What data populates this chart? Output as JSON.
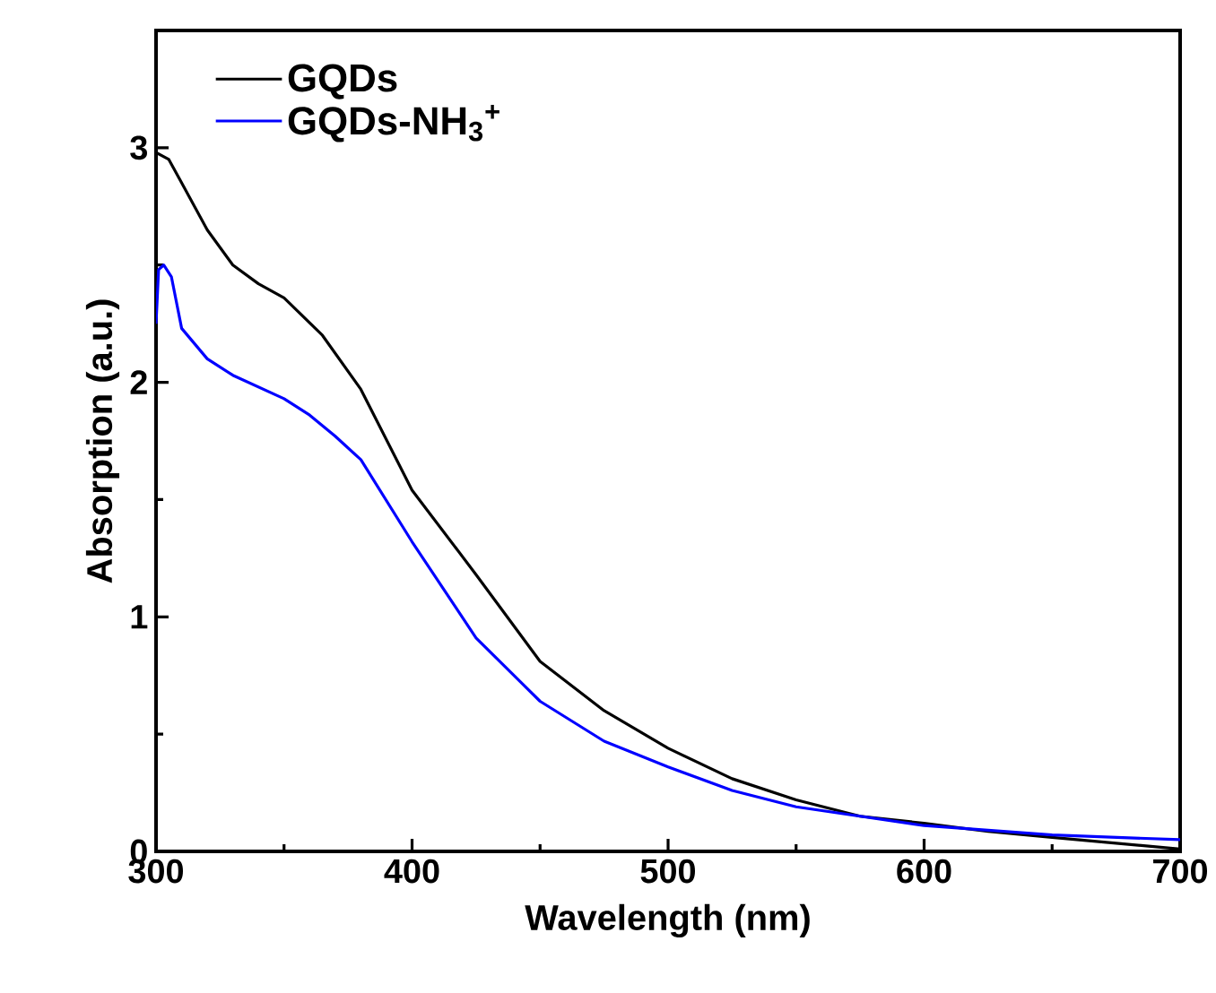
{
  "chart_data": {
    "type": "line",
    "xlabel": "Wavelength (nm)",
    "ylabel": "Absorption (a.u.)",
    "xlim": [
      300,
      700
    ],
    "ylim": [
      0,
      3.5
    ],
    "xticks": [
      300,
      400,
      500,
      600,
      700
    ],
    "yticks": [
      0,
      1,
      2,
      3
    ],
    "legend": "top left",
    "series": [
      {
        "name": "GQDs",
        "color": "#000000",
        "x": [
          300,
          305,
          310,
          320,
          330,
          340,
          350,
          365,
          380,
          400,
          425,
          450,
          475,
          500,
          525,
          550,
          575,
          600,
          625,
          650,
          675,
          700
        ],
        "values": [
          2.98,
          2.95,
          2.85,
          2.65,
          2.5,
          2.42,
          2.36,
          2.2,
          1.97,
          1.54,
          1.18,
          0.81,
          0.6,
          0.44,
          0.31,
          0.22,
          0.15,
          0.12,
          0.085,
          0.06,
          0.035,
          0.01
        ]
      },
      {
        "name": "GQDs-NH$_{3}$$^{+}$",
        "color": "#0000ff",
        "x": [
          300,
          301,
          303,
          306,
          310,
          320,
          330,
          340,
          350,
          360,
          370,
          380,
          400,
          425,
          450,
          475,
          500,
          525,
          550,
          575,
          600,
          625,
          650,
          675,
          700
        ],
        "values": [
          2.25,
          2.48,
          2.5,
          2.45,
          2.23,
          2.1,
          2.03,
          1.98,
          1.93,
          1.86,
          1.77,
          1.67,
          1.32,
          0.91,
          0.64,
          0.47,
          0.36,
          0.26,
          0.19,
          0.15,
          0.11,
          0.09,
          0.07,
          0.06,
          0.05
        ]
      }
    ]
  }
}
